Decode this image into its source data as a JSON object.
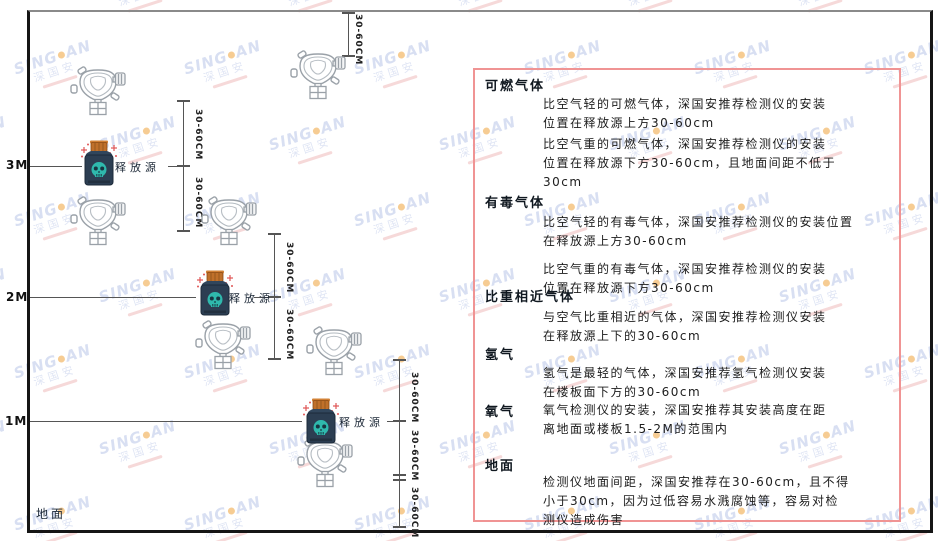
{
  "diagram": {
    "ground_label": "地面",
    "release_source_label": "释放源",
    "dim_label": "30-60CM",
    "levels": [
      {
        "label": "3M"
      },
      {
        "label": "2M"
      },
      {
        "label": "1M"
      }
    ]
  },
  "panel": {
    "sections": [
      {
        "heading": "可燃气体",
        "paragraphs": [
          "比空气轻的可燃气体，深国安推荐检测仪的安装\n位置在释放源上方30-60cm",
          "比空气重的可燃气体，深国安推荐检测仪的安装\n位置在释放源下方30-60cm，且地面间距不低于\n30cm"
        ]
      },
      {
        "heading": "有毒气体",
        "paragraphs": [
          "比空气轻的有毒气体，深国安推荐检测仪的安装位置\n在释放源上方30-60cm",
          "比空气重的有毒气体，深国安推荐检测仪的安装\n位置在释放源下方30-60cm"
        ]
      },
      {
        "heading": "比重相近气体",
        "paragraphs": [
          "与空气比重相近的气体，深国安推荐检测仪安装\n在释放源上下的30-60cm"
        ]
      },
      {
        "heading": "氢气",
        "paragraphs": [
          "氢气是最轻的气体，深国安推荐氢气检测仪安装\n在楼板面下方的30-60cm"
        ]
      },
      {
        "heading": "氧气",
        "paragraphs": [
          "氧气检测仪的安装，深国安推荐其安装高度在距\n离地面或楼板1.5-2M的范围内"
        ]
      },
      {
        "heading": "地面",
        "paragraphs": [
          "检测仪地面间距，深国安推荐在30-60cm，且不得\n小于30cm，因为过低容易水溅腐蚀等，容易对检\n测仪造成伤害"
        ]
      }
    ]
  },
  "watermark": {
    "brand_left": "SING",
    "brand_right": "AN",
    "cn": "深国安"
  },
  "colors": {
    "panel_border": "#f09494",
    "release_body": "#2c3e52",
    "release_cap": "#c5762e",
    "skull_teal": "#2fb9ad",
    "spark_red": "#e05555",
    "watermark_blue": "#b9c6e8",
    "line_gray": "#555555"
  }
}
